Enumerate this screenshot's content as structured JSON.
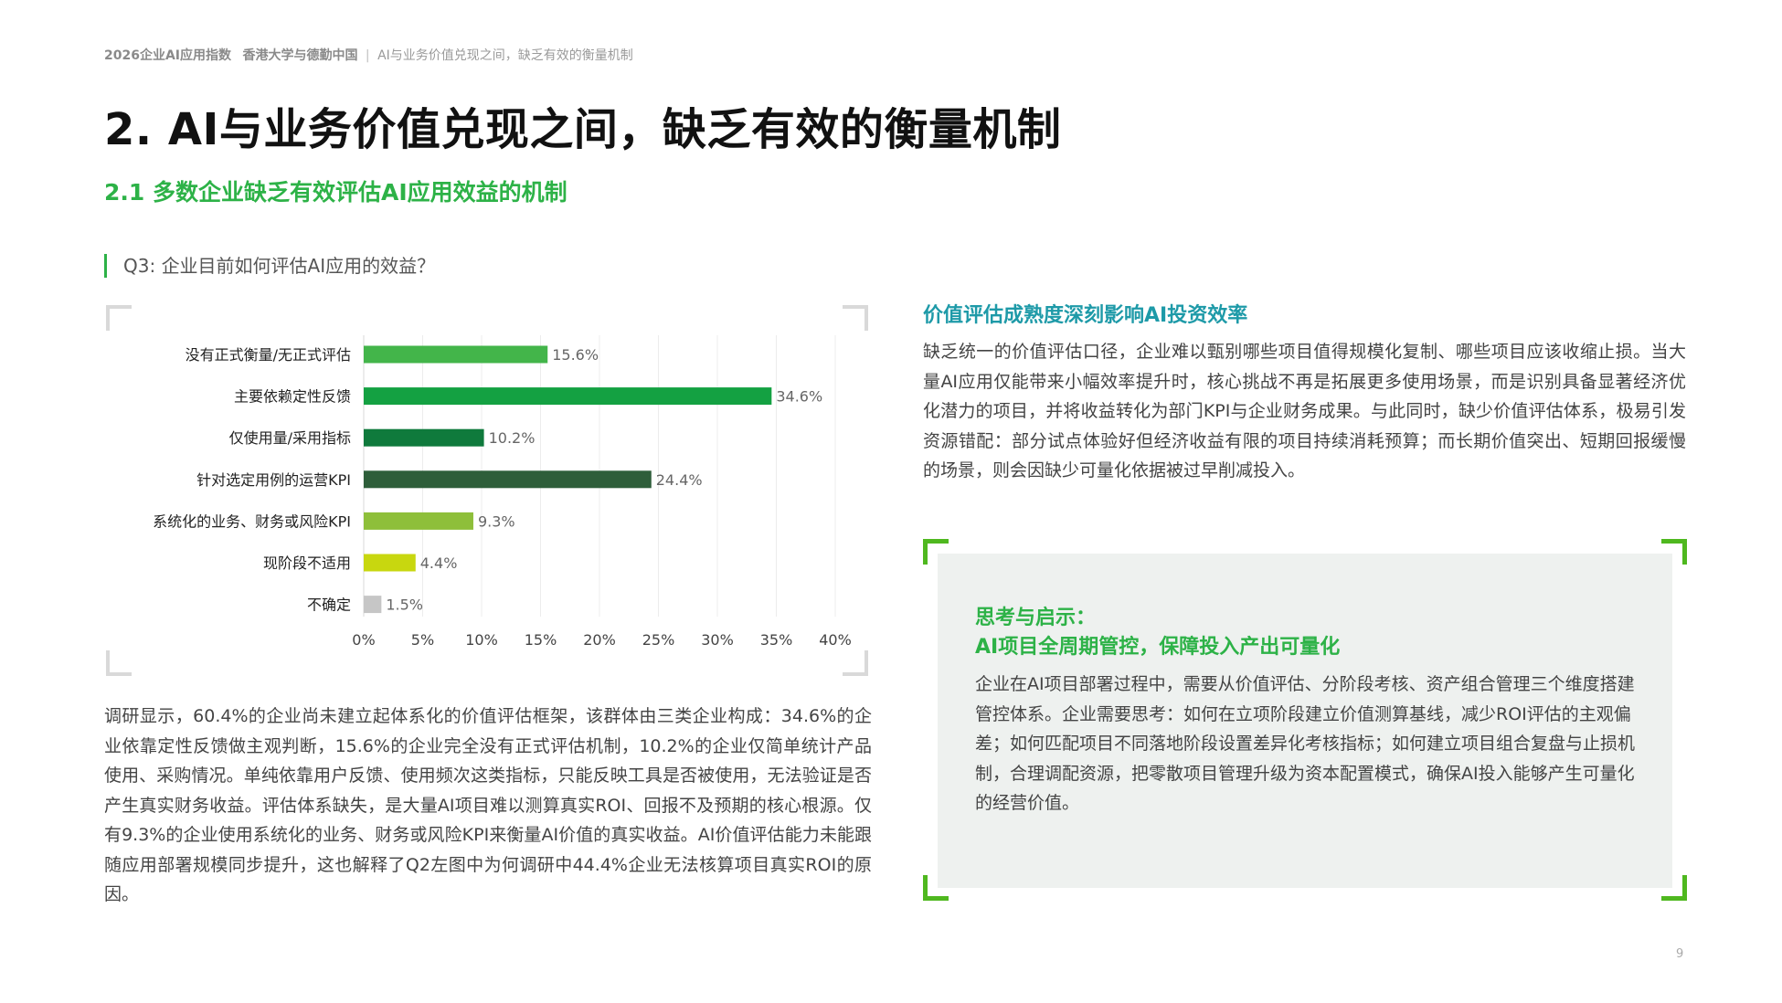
{
  "header": {
    "brand": "2026企业AI应用指数",
    "partners": "香港大学与德勤中国",
    "separator": "|",
    "section": "AI与业务价值兑现之间，缺乏有效的衡量机制"
  },
  "page_title": "2. AI与业务价值兑现之间，缺乏有效的衡量机制",
  "section_title": "2.1 多数企业缺乏有效评估AI应用效益的机制",
  "question": "Q3: 企业目前如何评估AI应用的效益？",
  "chart_data": {
    "type": "bar",
    "orientation": "horizontal",
    "categories": [
      "没有正式衡量/无正式评估",
      "主要依赖定性反馈",
      "仅使用量/采用指标",
      "针对选定用例的运营KPI",
      "系统化的业务、财务或风险KPI",
      "现阶段不适用",
      "不确定"
    ],
    "values": [
      15.6,
      34.6,
      10.2,
      24.4,
      9.3,
      4.4,
      1.5
    ],
    "value_labels": [
      "15.6%",
      "34.6%",
      "10.2%",
      "24.4%",
      "9.3%",
      "4.4%",
      "1.5%"
    ],
    "colors": [
      "#43b54a",
      "#14a142",
      "#0f7a3c",
      "#2e5e3a",
      "#8ebf3a",
      "#c8d70f",
      "#c6c6c6"
    ],
    "xlim": [
      0,
      40
    ],
    "x_ticks": [
      "0%",
      "5%",
      "10%",
      "15%",
      "20%",
      "25%",
      "30%",
      "35%",
      "40%"
    ],
    "grid": true,
    "legend": "none"
  },
  "body_paragraph": "调研显示，60.4%的企业尚未建立起体系化的价值评估框架，该群体由三类企业构成：34.6%的企业依靠定性反馈做主观判断，15.6%的企业完全没有正式评估机制，10.2%的企业仅简单统计产品使用、采购情况。单纯依靠用户反馈、使用频次这类指标，只能反映工具是否被使用，无法验证是否产生真实财务收益。评估体系缺失，是大量AI项目难以测算真实ROI、回报不及预期的核心根源。仅有9.3%的企业使用系统化的业务、财务或风险KPI来衡量AI价值的真实收益。AI价值评估能力未能跟随应用部署规模同步提升，这也解释了Q2左图中为何调研中44.4%企业无法核算项目真实ROI的原因。",
  "right": {
    "heading": "价值评估成熟度深刻影响AI投资效率",
    "paragraph": "缺乏统一的价值评估口径，企业难以甄别哪些项目值得规模化复制、哪些项目应该收缩止损。当大量AI应用仅能带来小幅效率提升时，核心挑战不再是拓展更多使用场景，而是识别具备显著经济优化潜力的项目，并将收益转化为部门KPI与企业财务成果。与此同时，缺少价值评估体系，极易引发资源错配：部分试点体验好但经济收益有限的项目持续消耗预算；而长期价值突出、短期回报缓慢的场景，则会因缺少可量化依据被过早削减投入。"
  },
  "insight_box": {
    "title1": "思考与启示：",
    "title2": "AI项目全周期管控，保障投入产出可量化",
    "paragraph": "企业在AI项目部署过程中，需要从价值评估、分阶段考核、资产组合管理三个维度搭建管控体系。企业需要思考：如何在立项阶段建立价值测算基线，减少ROI评估的主观偏差；如何匹配项目不同落地阶段设置差异化考核指标；如何建立项目组合复盘与止损机制，合理调配资源，把零散项目管理升级为资本配置模式，确保AI投入能够产生可量化的经营价值。"
  },
  "page_number": "9"
}
